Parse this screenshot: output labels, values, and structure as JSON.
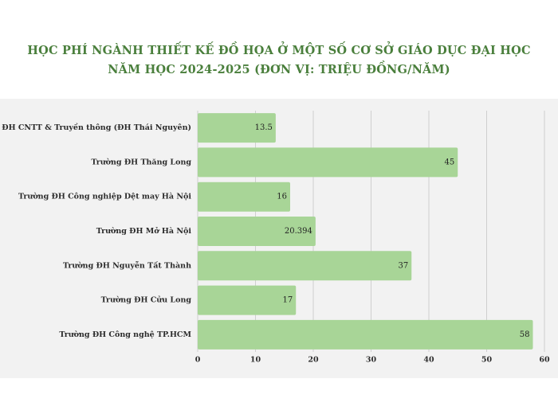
{
  "chart_data": {
    "type": "bar",
    "orientation": "horizontal",
    "title_lines": [
      "HỌC PHÍ NGÀNH THIẾT KẾ ĐỒ HỌA Ở MỘT SỐ CƠ SỞ GIÁO DỤC ĐẠI HỌC",
      "NĂM HỌC 2024-2025 (ĐƠN VỊ: TRIỆU ĐỒNG/NĂM)"
    ],
    "categories": [
      "Trường ĐH CNTT & Truyền thông (ĐH Thái Nguyên)",
      "Trường ĐH Thăng Long",
      "Trường ĐH Công nghiệp Dệt may Hà Nội",
      "Trường ĐH Mở Hà Nội",
      "Trường ĐH Nguyễn Tất Thành",
      "Trường ĐH Cửu Long",
      "Trường ĐH Công nghệ TP.HCM"
    ],
    "values": [
      13.5,
      45,
      16,
      20.394,
      37,
      17,
      58
    ],
    "value_labels": [
      "13.5",
      "45",
      "16",
      "20.394",
      "37",
      "17",
      "58"
    ],
    "xlim": [
      0,
      60
    ],
    "xticks": [
      0,
      10,
      20,
      30,
      40,
      50,
      60
    ],
    "grid": "vertical",
    "legend": "none",
    "colors": {
      "bar": "#a8d597",
      "title": "#4a7f3c",
      "grid": "#cfcfcf",
      "panel": "#f2f2f2"
    }
  }
}
